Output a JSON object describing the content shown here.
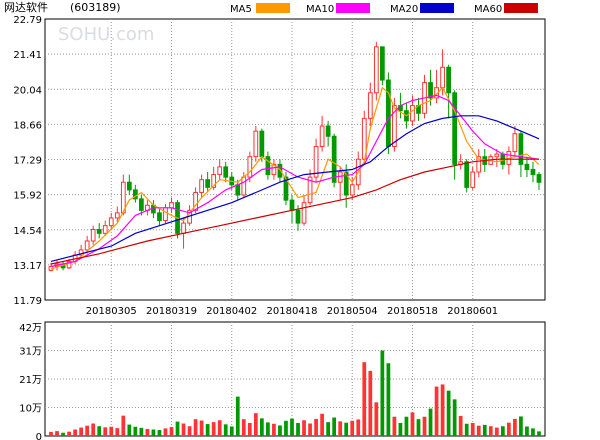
{
  "chart_data": {
    "type": "candlestick",
    "title": "网达软件",
    "code": "(603189)",
    "watermark": "SOHU.com",
    "price_axis": {
      "ylim": [
        11.79,
        22.79
      ],
      "ticks": [
        "22.79",
        "21.41",
        "20.04",
        "18.66",
        "17.29",
        "15.92",
        "14.54",
        "13.17",
        "11.79"
      ]
    },
    "volume_axis": {
      "ylim": [
        0,
        42
      ],
      "ticks": [
        "42万",
        "31万",
        "21万",
        "10万",
        "0"
      ]
    },
    "date_labels": [
      {
        "label": "20180305",
        "index": 10
      },
      {
        "label": "20180319",
        "index": 20
      },
      {
        "label": "20180402",
        "index": 30
      },
      {
        "label": "20180418",
        "index": 40
      },
      {
        "label": "20180504",
        "index": 50
      },
      {
        "label": "20180518",
        "index": 60
      },
      {
        "label": "20180601",
        "index": 70
      }
    ],
    "legend": [
      {
        "name": "MA5",
        "color": "#ff9900"
      },
      {
        "name": "MA10",
        "color": "#ff00ff"
      },
      {
        "name": "MA20",
        "color": "#0000cc"
      },
      {
        "name": "MA60",
        "color": "#cc0000"
      }
    ],
    "up_color": "#ff3333",
    "down_color": "#009900",
    "candles": [
      [
        12.95,
        13.1,
        13.25,
        12.9,
        1.5
      ],
      [
        13.1,
        13.2,
        13.35,
        12.95,
        1.8
      ],
      [
        13.2,
        13.05,
        13.3,
        12.95,
        1.2
      ],
      [
        13.05,
        13.3,
        13.4,
        13.0,
        1.6
      ],
      [
        13.3,
        13.55,
        13.7,
        13.2,
        2.4
      ],
      [
        13.55,
        13.75,
        13.95,
        13.4,
        3.1
      ],
      [
        13.75,
        14.1,
        14.3,
        13.6,
        3.8
      ],
      [
        14.1,
        14.55,
        14.7,
        13.95,
        4.6
      ],
      [
        14.55,
        14.4,
        14.8,
        14.2,
        3.6
      ],
      [
        14.4,
        14.7,
        14.9,
        14.3,
        3.2
      ],
      [
        14.7,
        15.0,
        15.2,
        14.55,
        3.4
      ],
      [
        15.0,
        15.2,
        15.45,
        14.85,
        2.9
      ],
      [
        15.2,
        16.4,
        16.7,
        15.1,
        7.5
      ],
      [
        16.4,
        16.1,
        16.7,
        15.9,
        4.2
      ],
      [
        16.1,
        15.75,
        16.3,
        15.6,
        3.4
      ],
      [
        15.75,
        15.3,
        15.9,
        15.1,
        3.0
      ],
      [
        15.3,
        15.5,
        15.7,
        15.1,
        2.6
      ],
      [
        15.5,
        15.2,
        15.7,
        15.0,
        2.4
      ],
      [
        15.2,
        14.9,
        15.4,
        14.7,
        2.2
      ],
      [
        14.9,
        15.4,
        15.55,
        14.8,
        2.8
      ],
      [
        15.4,
        15.6,
        15.8,
        15.2,
        3.3
      ],
      [
        15.6,
        14.4,
        15.7,
        14.2,
        5.3
      ],
      [
        14.4,
        14.8,
        15.0,
        13.8,
        4.6
      ],
      [
        14.8,
        15.3,
        15.5,
        14.7,
        3.6
      ],
      [
        15.3,
        16.0,
        16.2,
        15.2,
        6.2
      ],
      [
        16.0,
        16.5,
        16.7,
        15.8,
        5.7
      ],
      [
        16.5,
        16.2,
        16.8,
        16.0,
        4.4
      ],
      [
        16.2,
        16.7,
        17.0,
        16.1,
        5.1
      ],
      [
        16.7,
        17.0,
        17.3,
        16.5,
        5.8
      ],
      [
        17.0,
        16.6,
        17.2,
        16.4,
        4.3
      ],
      [
        16.6,
        16.3,
        16.8,
        16.1,
        3.5
      ],
      [
        16.3,
        15.9,
        16.5,
        15.7,
        14.5
      ],
      [
        15.9,
        16.6,
        16.8,
        15.8,
        6.2
      ],
      [
        16.6,
        17.4,
        17.6,
        16.4,
        4.8
      ],
      [
        17.4,
        18.4,
        18.6,
        17.2,
        8.4
      ],
      [
        18.4,
        17.4,
        18.5,
        17.2,
        6.5
      ],
      [
        17.4,
        16.7,
        17.6,
        16.5,
        5.0
      ],
      [
        16.7,
        17.1,
        17.3,
        16.5,
        4.5
      ],
      [
        17.1,
        16.6,
        17.3,
        16.4,
        3.9
      ],
      [
        16.6,
        15.7,
        16.8,
        15.5,
        5.6
      ],
      [
        15.7,
        15.3,
        15.9,
        14.8,
        6.4
      ],
      [
        15.3,
        14.8,
        15.5,
        14.5,
        4.8
      ],
      [
        14.8,
        15.6,
        15.9,
        14.7,
        5.8
      ],
      [
        15.6,
        16.6,
        16.9,
        15.5,
        4.6
      ],
      [
        16.6,
        17.8,
        18.1,
        16.4,
        6.3
      ],
      [
        17.8,
        18.6,
        19.0,
        17.6,
        8.2
      ],
      [
        18.6,
        18.2,
        18.8,
        17.8,
        5.1
      ],
      [
        18.2,
        16.4,
        18.3,
        16.2,
        6.8
      ],
      [
        16.4,
        16.8,
        17.0,
        15.7,
        5.4
      ],
      [
        16.8,
        15.9,
        17.1,
        15.4,
        4.9
      ],
      [
        15.9,
        16.3,
        16.6,
        15.7,
        5.6
      ],
      [
        16.3,
        17.3,
        17.6,
        16.1,
        6.1
      ],
      [
        17.3,
        18.9,
        19.2,
        17.1,
        27.2
      ],
      [
        18.9,
        19.9,
        20.3,
        18.6,
        24.0
      ],
      [
        19.9,
        21.7,
        21.9,
        19.6,
        12.4
      ],
      [
        21.7,
        20.4,
        21.5,
        20.2,
        31.5
      ],
      [
        20.4,
        17.8,
        20.7,
        17.5,
        26.8
      ],
      [
        17.8,
        19.4,
        19.7,
        17.6,
        7.1
      ],
      [
        19.4,
        19.2,
        19.9,
        18.9,
        4.8
      ],
      [
        19.2,
        18.8,
        19.5,
        18.5,
        7.1
      ],
      [
        18.8,
        19.4,
        19.8,
        18.6,
        8.7
      ],
      [
        19.4,
        19.1,
        19.7,
        18.8,
        6.2
      ],
      [
        19.1,
        20.3,
        20.6,
        18.9,
        7.1
      ],
      [
        20.3,
        19.7,
        20.8,
        19.4,
        10.1
      ],
      [
        19.7,
        20.1,
        20.8,
        19.5,
        18.2
      ],
      [
        20.1,
        20.9,
        21.6,
        19.8,
        19.0
      ],
      [
        20.9,
        19.9,
        21.0,
        18.9,
        16.7
      ],
      [
        19.9,
        17.1,
        20.0,
        16.5,
        13.5
      ],
      [
        17.1,
        17.2,
        17.5,
        16.9,
        7.4
      ],
      [
        17.2,
        16.2,
        17.3,
        16.0,
        4.5
      ],
      [
        16.2,
        16.8,
        17.0,
        16.1,
        4.8
      ],
      [
        16.8,
        17.4,
        17.7,
        16.6,
        3.8
      ],
      [
        17.4,
        17.1,
        17.7,
        16.8,
        4.1
      ],
      [
        17.1,
        17.4,
        17.5,
        17.1,
        3.6
      ],
      [
        17.4,
        17.5,
        17.7,
        17.0,
        3.1
      ],
      [
        17.5,
        17.1,
        17.6,
        16.9,
        3.6
      ],
      [
        17.1,
        17.6,
        17.8,
        16.7,
        4.9
      ],
      [
        17.6,
        18.3,
        18.6,
        17.4,
        6.3
      ],
      [
        18.3,
        17.1,
        18.4,
        16.6,
        7.2
      ],
      [
        17.1,
        16.9,
        17.4,
        16.6,
        3.5
      ],
      [
        16.9,
        16.7,
        17.2,
        16.4,
        2.8
      ],
      [
        16.7,
        16.4,
        16.8,
        16.1,
        1.7
      ]
    ],
    "ma": {
      "MA5": [
        [
          0,
          13.0
        ],
        [
          4,
          13.3
        ],
        [
          8,
          14.1
        ],
        [
          11,
          14.8
        ],
        [
          13,
          15.7
        ],
        [
          15,
          16.0
        ],
        [
          17,
          15.5
        ],
        [
          20,
          15.1
        ],
        [
          22,
          14.9
        ],
        [
          25,
          15.8
        ],
        [
          28,
          16.5
        ],
        [
          31,
          16.4
        ],
        [
          33,
          16.8
        ],
        [
          35,
          17.4
        ],
        [
          38,
          16.9
        ],
        [
          41,
          15.8
        ],
        [
          44,
          16.0
        ],
        [
          46,
          17.3
        ],
        [
          48,
          17.0
        ],
        [
          50,
          16.4
        ],
        [
          52,
          17.2
        ],
        [
          53,
          18.5
        ],
        [
          54,
          19.3
        ],
        [
          55,
          20.1
        ],
        [
          56,
          19.9
        ],
        [
          57,
          19.3
        ],
        [
          59,
          19.0
        ],
        [
          61,
          19.4
        ],
        [
          63,
          19.6
        ],
        [
          65,
          20.1
        ],
        [
          67,
          19.2
        ],
        [
          69,
          18.0
        ],
        [
          71,
          17.3
        ],
        [
          74,
          17.2
        ],
        [
          77,
          17.4
        ],
        [
          79,
          17.5
        ],
        [
          81,
          17.1
        ]
      ],
      "MA10": [
        [
          0,
          13.1
        ],
        [
          4,
          13.3
        ],
        [
          8,
          13.8
        ],
        [
          11,
          14.3
        ],
        [
          14,
          15.1
        ],
        [
          17,
          15.4
        ],
        [
          20,
          15.4
        ],
        [
          23,
          15.2
        ],
        [
          26,
          15.6
        ],
        [
          29,
          16.1
        ],
        [
          32,
          16.4
        ],
        [
          35,
          16.9
        ],
        [
          38,
          17.0
        ],
        [
          41,
          16.6
        ],
        [
          44,
          16.4
        ],
        [
          47,
          16.6
        ],
        [
          50,
          16.7
        ],
        [
          52,
          17.1
        ],
        [
          54,
          18.0
        ],
        [
          56,
          18.9
        ],
        [
          58,
          19.4
        ],
        [
          60,
          19.6
        ],
        [
          62,
          19.7
        ],
        [
          64,
          19.8
        ],
        [
          66,
          19.6
        ],
        [
          68,
          19.0
        ],
        [
          70,
          18.4
        ],
        [
          72,
          17.9
        ],
        [
          75,
          17.5
        ],
        [
          78,
          17.4
        ],
        [
          81,
          17.3
        ]
      ],
      "MA20": [
        [
          0,
          13.3
        ],
        [
          10,
          13.9
        ],
        [
          14,
          14.4
        ],
        [
          18,
          14.7
        ],
        [
          22,
          15.0
        ],
        [
          26,
          15.3
        ],
        [
          30,
          15.6
        ],
        [
          34,
          16.0
        ],
        [
          38,
          16.4
        ],
        [
          42,
          16.7
        ],
        [
          46,
          16.8
        ],
        [
          50,
          16.9
        ],
        [
          53,
          17.2
        ],
        [
          56,
          17.8
        ],
        [
          59,
          18.3
        ],
        [
          62,
          18.7
        ],
        [
          65,
          18.9
        ],
        [
          68,
          19.0
        ],
        [
          71,
          19.0
        ],
        [
          74,
          18.8
        ],
        [
          78,
          18.4
        ],
        [
          81,
          18.1
        ]
      ],
      "MA60": [
        [
          0,
          13.2
        ],
        [
          8,
          13.6
        ],
        [
          16,
          14.1
        ],
        [
          22,
          14.4
        ],
        [
          28,
          14.7
        ],
        [
          34,
          15.0
        ],
        [
          40,
          15.3
        ],
        [
          46,
          15.6
        ],
        [
          50,
          15.8
        ],
        [
          54,
          16.1
        ],
        [
          58,
          16.5
        ],
        [
          62,
          16.8
        ],
        [
          66,
          17.0
        ],
        [
          70,
          17.2
        ],
        [
          74,
          17.3
        ],
        [
          78,
          17.3
        ],
        [
          81,
          17.3
        ]
      ]
    }
  }
}
